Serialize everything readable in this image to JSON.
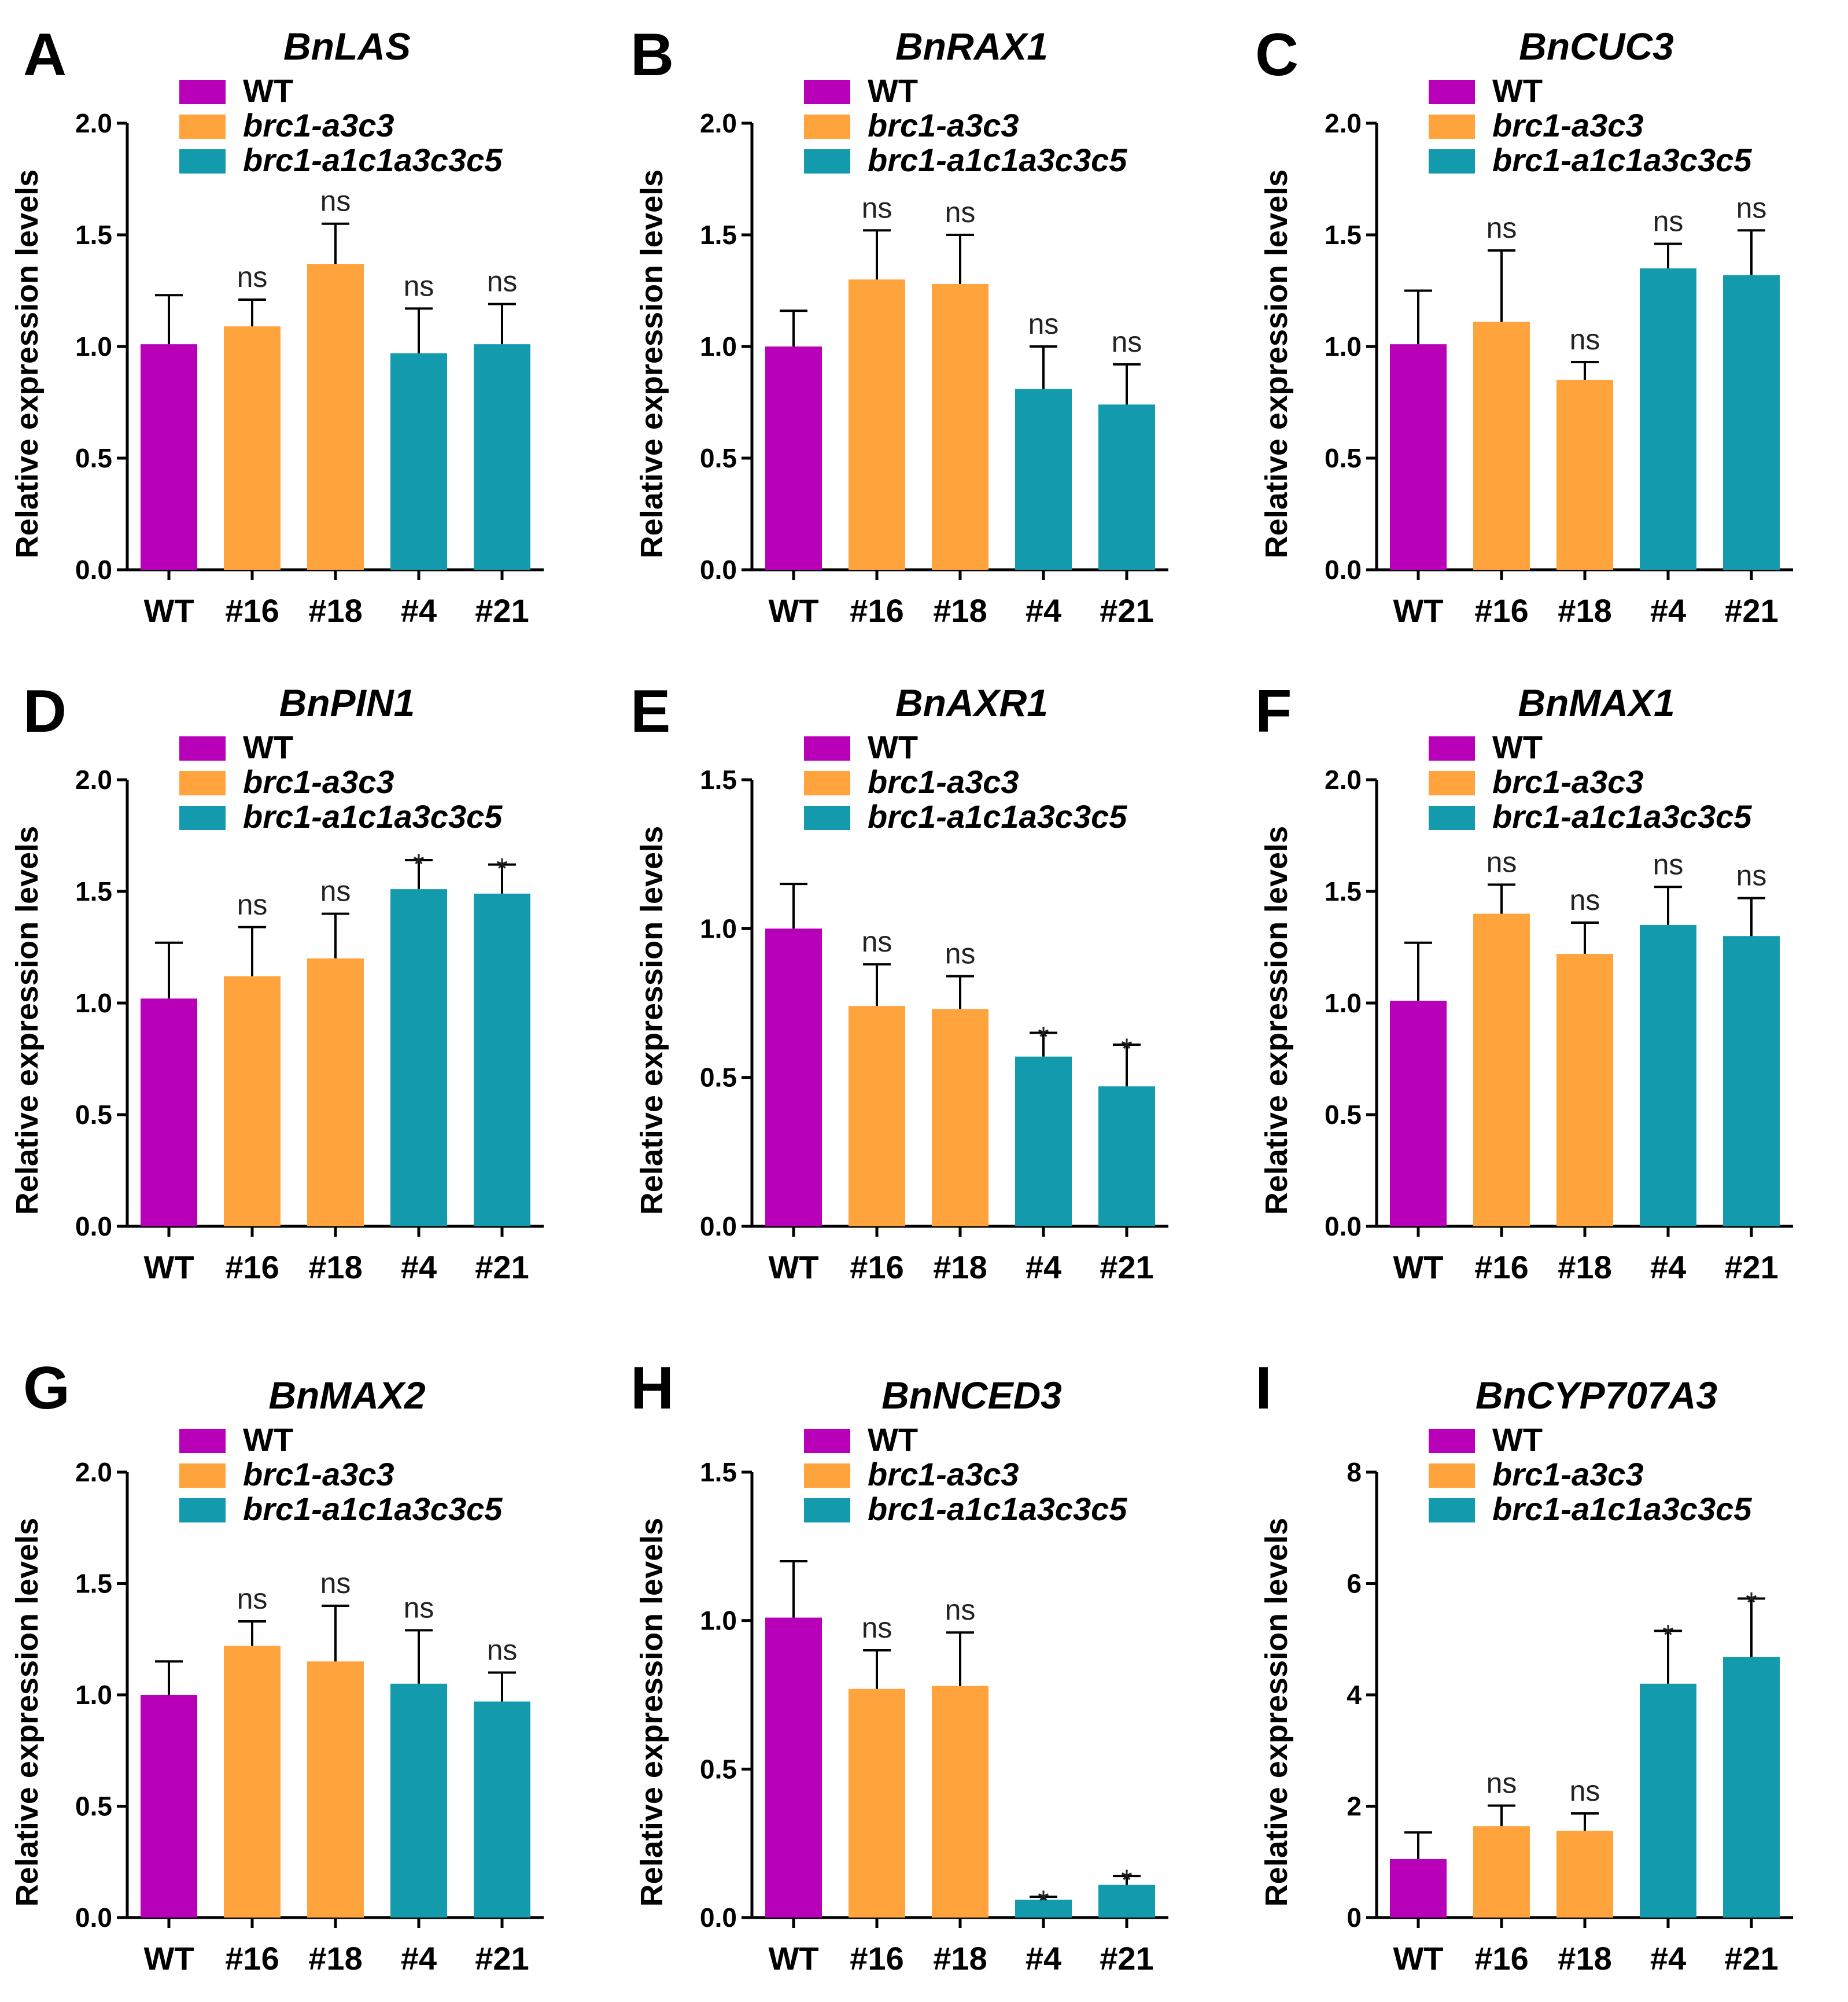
{
  "figure": {
    "colors": {
      "WT": "#b800b8",
      "brc1-a3c3": "#ffa33d",
      "brc1-a1c1a3c3c5": "#139aad"
    }
  },
  "chart_data": [
    {
      "type": "bar",
      "panel": "A",
      "title": "BnLAS",
      "xlabel": "",
      "ylabel": "Relative expression levels",
      "categories": [
        "WT",
        "#16",
        "#18",
        "#4",
        "#21"
      ],
      "groups": [
        "WT",
        "brc1-a3c3",
        "brc1-a3c3",
        "brc1-a1c1a3c3c5",
        "brc1-a1c1a3c3c5"
      ],
      "legend": [
        "WT",
        "brc1-a3c3",
        "brc1-a1c1a3c3c5"
      ],
      "values": [
        1.01,
        1.09,
        1.37,
        0.97,
        1.01
      ],
      "errors": [
        0.22,
        0.12,
        0.18,
        0.2,
        0.18
      ],
      "significance": [
        "",
        "ns",
        "ns",
        "ns",
        "ns"
      ],
      "ylim": [
        0,
        2.0
      ],
      "yticks": [
        "0.0",
        "0.5",
        "1.0",
        "1.5",
        "2.0"
      ]
    },
    {
      "type": "bar",
      "panel": "B",
      "title": "BnRAX1",
      "xlabel": "",
      "ylabel": "Relative expression levels",
      "categories": [
        "WT",
        "#16",
        "#18",
        "#4",
        "#21"
      ],
      "groups": [
        "WT",
        "brc1-a3c3",
        "brc1-a3c3",
        "brc1-a1c1a3c3c5",
        "brc1-a1c1a3c3c5"
      ],
      "legend": [
        "WT",
        "brc1-a3c3",
        "brc1-a1c1a3c3c5"
      ],
      "values": [
        1.0,
        1.3,
        1.28,
        0.81,
        0.74
      ],
      "errors": [
        0.16,
        0.22,
        0.22,
        0.19,
        0.18
      ],
      "significance": [
        "",
        "ns",
        "ns",
        "ns",
        "ns"
      ],
      "ylim": [
        0,
        2.0
      ],
      "yticks": [
        "0.0",
        "0.5",
        "1.0",
        "1.5",
        "2.0"
      ]
    },
    {
      "type": "bar",
      "panel": "C",
      "title": "BnCUC3",
      "xlabel": "",
      "ylabel": "Relative expression levels",
      "categories": [
        "WT",
        "#16",
        "#18",
        "#4",
        "#21"
      ],
      "groups": [
        "WT",
        "brc1-a3c3",
        "brc1-a3c3",
        "brc1-a1c1a3c3c5",
        "brc1-a1c1a3c3c5"
      ],
      "legend": [
        "WT",
        "brc1-a3c3",
        "brc1-a1c1a3c3c5"
      ],
      "values": [
        1.01,
        1.11,
        0.85,
        1.35,
        1.32
      ],
      "errors": [
        0.24,
        0.32,
        0.08,
        0.11,
        0.2
      ],
      "significance": [
        "",
        "ns",
        "ns",
        "ns",
        "ns"
      ],
      "ylim": [
        0,
        2.0
      ],
      "yticks": [
        "0.0",
        "0.5",
        "1.0",
        "1.5",
        "2.0"
      ]
    },
    {
      "type": "bar",
      "panel": "D",
      "title": "BnPIN1",
      "xlabel": "",
      "ylabel": "Relative expression levels",
      "categories": [
        "WT",
        "#16",
        "#18",
        "#4",
        "#21"
      ],
      "groups": [
        "WT",
        "brc1-a3c3",
        "brc1-a3c3",
        "brc1-a1c1a3c3c5",
        "brc1-a1c1a3c3c5"
      ],
      "legend": [
        "WT",
        "brc1-a3c3",
        "brc1-a1c1a3c3c5"
      ],
      "values": [
        1.02,
        1.12,
        1.2,
        1.51,
        1.49
      ],
      "errors": [
        0.25,
        0.22,
        0.2,
        0.13,
        0.13
      ],
      "significance": [
        "",
        "ns",
        "ns",
        "*",
        "*"
      ],
      "ylim": [
        0,
        2.0
      ],
      "yticks": [
        "0.0",
        "0.5",
        "1.0",
        "1.5",
        "2.0"
      ]
    },
    {
      "type": "bar",
      "panel": "E",
      "title": "BnAXR1",
      "xlabel": "",
      "ylabel": "Relative expression levels",
      "categories": [
        "WT",
        "#16",
        "#18",
        "#4",
        "#21"
      ],
      "groups": [
        "WT",
        "brc1-a3c3",
        "brc1-a3c3",
        "brc1-a1c1a3c3c5",
        "brc1-a1c1a3c3c5"
      ],
      "legend": [
        "WT",
        "brc1-a3c3",
        "brc1-a1c1a3c3c5"
      ],
      "values": [
        1.0,
        0.74,
        0.73,
        0.57,
        0.47
      ],
      "errors": [
        0.15,
        0.14,
        0.11,
        0.08,
        0.14
      ],
      "significance": [
        "",
        "ns",
        "ns",
        "*",
        "*"
      ],
      "ylim": [
        0,
        1.5
      ],
      "yticks": [
        "0.0",
        "0.5",
        "1.0",
        "1.5"
      ]
    },
    {
      "type": "bar",
      "panel": "F",
      "title": "BnMAX1",
      "xlabel": "",
      "ylabel": "Relative expression levels",
      "categories": [
        "WT",
        "#16",
        "#18",
        "#4",
        "#21"
      ],
      "groups": [
        "WT",
        "brc1-a3c3",
        "brc1-a3c3",
        "brc1-a1c1a3c3c5",
        "brc1-a1c1a3c3c5"
      ],
      "legend": [
        "WT",
        "brc1-a3c3",
        "brc1-a1c1a3c3c5"
      ],
      "values": [
        1.01,
        1.4,
        1.22,
        1.35,
        1.3
      ],
      "errors": [
        0.26,
        0.13,
        0.14,
        0.17,
        0.17
      ],
      "significance": [
        "",
        "ns",
        "ns",
        "ns",
        "ns"
      ],
      "ylim": [
        0,
        2.0
      ],
      "yticks": [
        "0.0",
        "0.5",
        "1.0",
        "1.5",
        "2.0"
      ]
    },
    {
      "type": "bar",
      "panel": "G",
      "title": "BnMAX2",
      "xlabel": "",
      "ylabel": "Relative expression levels",
      "categories": [
        "WT",
        "#16",
        "#18",
        "#4",
        "#21"
      ],
      "groups": [
        "WT",
        "brc1-a3c3",
        "brc1-a3c3",
        "brc1-a1c1a3c3c5",
        "brc1-a1c1a3c3c5"
      ],
      "legend": [
        "WT",
        "brc1-a3c3",
        "brc1-a1c1a3c3c5"
      ],
      "values": [
        1.0,
        1.22,
        1.15,
        1.05,
        0.97
      ],
      "errors": [
        0.15,
        0.11,
        0.25,
        0.24,
        0.13
      ],
      "significance": [
        "",
        "ns",
        "ns",
        "ns",
        "ns"
      ],
      "ylim": [
        0,
        2.0
      ],
      "yticks": [
        "0.0",
        "0.5",
        "1.0",
        "1.5",
        "2.0"
      ]
    },
    {
      "type": "bar",
      "panel": "H",
      "title": "BnNCED3",
      "xlabel": "",
      "ylabel": "Relative expression levels",
      "categories": [
        "WT",
        "#16",
        "#18",
        "#4",
        "#21"
      ],
      "groups": [
        "WT",
        "brc1-a3c3",
        "brc1-a3c3",
        "brc1-a1c1a3c3c5",
        "brc1-a1c1a3c3c5"
      ],
      "legend": [
        "WT",
        "brc1-a3c3",
        "brc1-a1c1a3c3c5"
      ],
      "values": [
        1.01,
        0.77,
        0.78,
        0.06,
        0.11
      ],
      "errors": [
        0.19,
        0.13,
        0.18,
        0.01,
        0.03
      ],
      "significance": [
        "",
        "ns",
        "ns",
        "*",
        "*"
      ],
      "ylim": [
        0,
        1.5
      ],
      "yticks": [
        "0.0",
        "0.5",
        "1.0",
        "1.5"
      ]
    },
    {
      "type": "bar",
      "panel": "I",
      "title": "BnCYP707A3",
      "xlabel": "",
      "ylabel": "Relative expression levels",
      "categories": [
        "WT",
        "#16",
        "#18",
        "#4",
        "#21"
      ],
      "groups": [
        "WT",
        "brc1-a3c3",
        "brc1-a3c3",
        "brc1-a1c1a3c3c5",
        "brc1-a1c1a3c3c5"
      ],
      "legend": [
        "WT",
        "brc1-a3c3",
        "brc1-a1c1a3c3c5"
      ],
      "values": [
        1.05,
        1.64,
        1.56,
        4.2,
        4.68
      ],
      "errors": [
        0.48,
        0.37,
        0.31,
        0.95,
        1.05
      ],
      "significance": [
        "",
        "ns",
        "ns",
        "*",
        "*"
      ],
      "ylim": [
        0,
        8
      ],
      "yticks": [
        "0",
        "2",
        "4",
        "6",
        "8"
      ]
    }
  ]
}
